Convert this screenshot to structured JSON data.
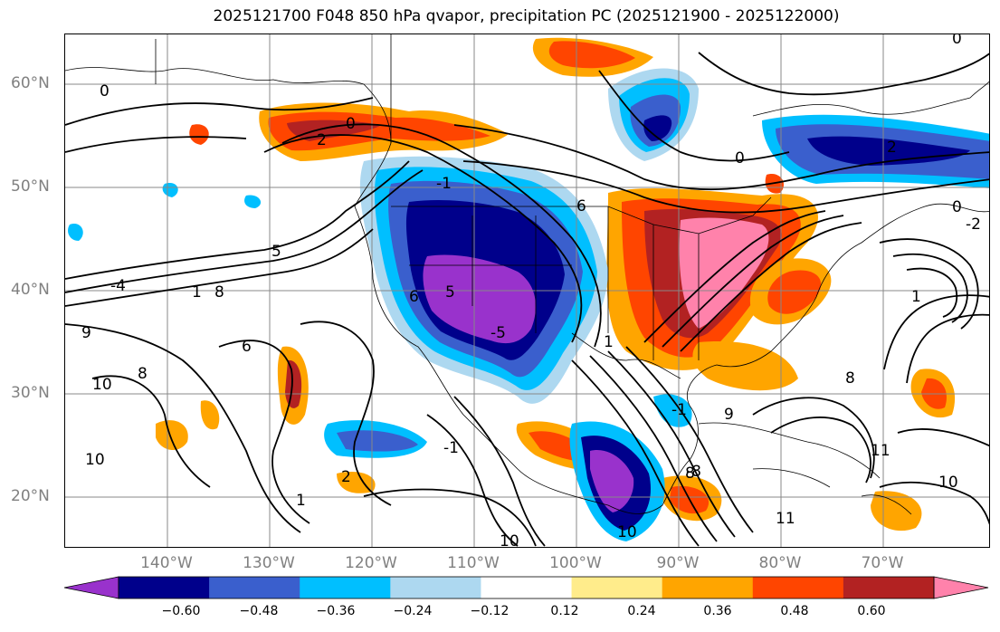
{
  "title": "2025121700 F048 850 hPa qvapor, precipitation PC (2025121900 - 2025122000)",
  "latitude_labels": [
    "60°N",
    "50°N",
    "40°N",
    "30°N",
    "20°N"
  ],
  "longitude_labels": [
    "140°W",
    "130°W",
    "120°W",
    "110°W",
    "100°W",
    "90°W",
    "80°W",
    "70°W"
  ],
  "colorbar": {
    "tick_labels": [
      "−0.60",
      "−0.48",
      "−0.36",
      "−0.24",
      "−0.12",
      "0.12",
      "0.24",
      "0.36",
      "0.48",
      "0.60"
    ],
    "colors": [
      "#9932cc",
      "#00008b",
      "#3a5fcd",
      "#00bfff",
      "#add8f0",
      "#ffffff",
      "#ffec8b",
      "#ffa500",
      "#ff4500",
      "#b22222",
      "#ff82ab"
    ]
  },
  "contour_labels": [
    "0",
    "2",
    "0",
    "-1",
    "0",
    "5",
    "-4",
    "1",
    "8",
    "6",
    "9",
    "10",
    "8",
    "10",
    "1",
    "2",
    "5",
    "6",
    "6",
    "-5",
    "-1",
    "-1",
    "-8",
    "0",
    "-2",
    "0",
    "1",
    "8",
    "11",
    "2",
    "10",
    "10",
    "9",
    "11",
    "8",
    "1",
    "10"
  ]
}
